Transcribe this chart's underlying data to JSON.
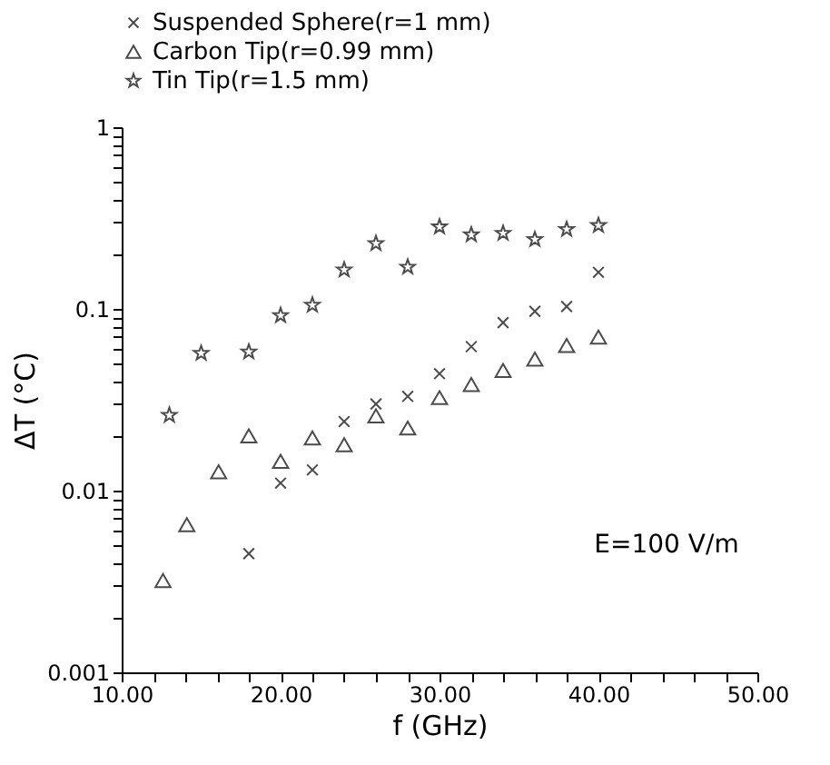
{
  "chart_data": {
    "type": "scatter",
    "xlabel": "f (GHz)",
    "ylabel": "ΔT (°C)",
    "log": "y",
    "legend": "top",
    "grid": false,
    "xlim": [
      10,
      50
    ],
    "ylim": [
      0.001,
      1
    ],
    "xticks": [
      {
        "value": 10,
        "label": "10.00"
      },
      {
        "value": 12,
        "label": null
      },
      {
        "value": 14,
        "label": null
      },
      {
        "value": 16,
        "label": null
      },
      {
        "value": 18,
        "label": null
      },
      {
        "value": 20,
        "label": "20.00"
      },
      {
        "value": 22,
        "label": null
      },
      {
        "value": 24,
        "label": null
      },
      {
        "value": 26,
        "label": null
      },
      {
        "value": 28,
        "label": null
      },
      {
        "value": 30,
        "label": "30.00"
      },
      {
        "value": 32,
        "label": null
      },
      {
        "value": 34,
        "label": null
      },
      {
        "value": 36,
        "label": null
      },
      {
        "value": 38,
        "label": null
      },
      {
        "value": 40,
        "label": "40.00"
      },
      {
        "value": 42,
        "label": null
      },
      {
        "value": 44,
        "label": null
      },
      {
        "value": 46,
        "label": null
      },
      {
        "value": 48,
        "label": null
      },
      {
        "value": 50,
        "label": "50.00"
      }
    ],
    "yticks": [
      0.001,
      {
        "value": 0.002,
        "label": null
      },
      {
        "value": 0.003,
        "label": null
      },
      {
        "value": 0.004,
        "label": null
      },
      {
        "value": 0.005,
        "label": null
      },
      {
        "value": 0.006,
        "label": null
      },
      {
        "value": 0.007,
        "label": null
      },
      {
        "value": 0.008,
        "label": null
      },
      {
        "value": 0.009,
        "label": null
      },
      0.01,
      {
        "value": 0.02,
        "label": null
      },
      {
        "value": 0.03,
        "label": null
      },
      {
        "value": 0.04,
        "label": null
      },
      {
        "value": 0.05,
        "label": null
      },
      {
        "value": 0.06,
        "label": null
      },
      {
        "value": 0.07,
        "label": null
      },
      {
        "value": 0.08,
        "label": null
      },
      {
        "value": 0.09,
        "label": null
      },
      0.1,
      {
        "value": 0.2,
        "label": null
      },
      {
        "value": 0.3,
        "label": null
      },
      {
        "value": 0.4,
        "label": null
      },
      {
        "value": 0.5,
        "label": null
      },
      {
        "value": 0.6,
        "label": null
      },
      {
        "value": 0.7,
        "label": null
      },
      {
        "value": 0.8,
        "label": null
      },
      {
        "value": 0.9,
        "label": null
      },
      1
    ],
    "annotations": [
      "E=100 V/m"
    ],
    "series": [
      {
        "name": "Suspended Sphere(r=1 mm)",
        "color": "#000000",
        "marker": "cross",
        "x": [
          18,
          20,
          22,
          24,
          26,
          28,
          30,
          32,
          34,
          36,
          38,
          40
        ],
        "values": [
          0.0045,
          0.011,
          0.013,
          0.024,
          0.03,
          0.033,
          0.044,
          0.062,
          0.084,
          0.097,
          0.103,
          0.159
        ]
      },
      {
        "name": "Carbon Tip(r=0.99 mm)",
        "color": "#000000",
        "marker": "triangle",
        "x": [
          12.6,
          14.1,
          16.1,
          18,
          20,
          22,
          24,
          26,
          28,
          30,
          32,
          34,
          36,
          38,
          40
        ],
        "values": [
          0.0032,
          0.0065,
          0.0127,
          0.02,
          0.0145,
          0.0195,
          0.0179,
          0.0258,
          0.0221,
          0.0325,
          0.0383,
          0.0458,
          0.053,
          0.063,
          0.07
        ]
      },
      {
        "name": "Tin Tip(r=1.5 mm)",
        "color": "#000000",
        "marker": "star",
        "x": [
          13,
          15,
          18,
          20,
          22,
          24,
          26,
          28,
          30,
          32,
          34,
          36,
          38,
          40
        ],
        "values": [
          0.026,
          0.057,
          0.058,
          0.092,
          0.105,
          0.164,
          0.229,
          0.17,
          0.283,
          0.256,
          0.261,
          0.241,
          0.274,
          0.288
        ]
      }
    ]
  }
}
